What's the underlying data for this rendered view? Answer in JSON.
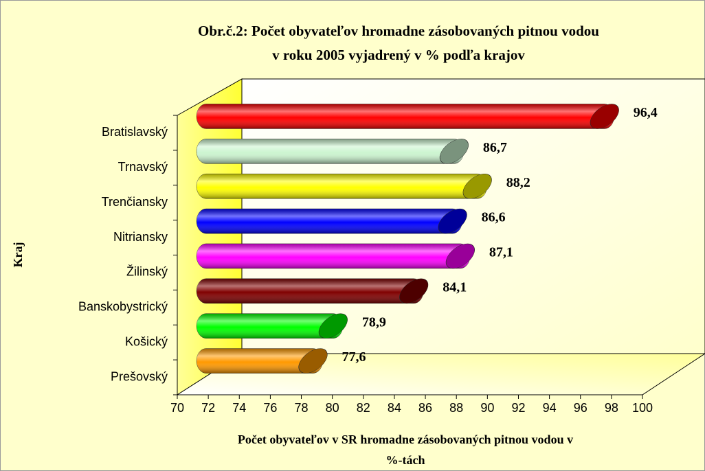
{
  "chart_data": {
    "type": "bar3d_horizontal",
    "title": [
      "Obr.č.2:  Počet obyvateľov hromadne zásobovaných pitnou vodou",
      "v  roku 2005  vyjadrený v %  podľa krajov"
    ],
    "categories": [
      "Bratislavský",
      "Trnavský",
      "Trenčiansky",
      "Nitriansky",
      "Žilinský",
      "Banskobystrický",
      "Košický",
      "Prešovský"
    ],
    "values": [
      96.4,
      86.7,
      88.2,
      86.6,
      87.1,
      84.1,
      78.9,
      77.6
    ],
    "value_labels": [
      "96,4",
      "86,7",
      "88,2",
      "86,6",
      "87,1",
      "84,1",
      "78,9",
      "77,6"
    ],
    "colors": [
      "#ff0000",
      "#ccf5d0",
      "#ffff00",
      "#0000ff",
      "#ff00ff",
      "#800000",
      "#00ff00",
      "#ff9900"
    ],
    "xlim": [
      70,
      100
    ],
    "xticks": [
      70,
      72,
      74,
      76,
      78,
      80,
      82,
      84,
      86,
      88,
      90,
      92,
      94,
      96,
      98,
      100
    ],
    "xlabel": [
      "Počet obyvateľov v SR hromadne zásobovaných pitnou  vodou v",
      "%-tách"
    ],
    "ylabel": "Kraj"
  }
}
